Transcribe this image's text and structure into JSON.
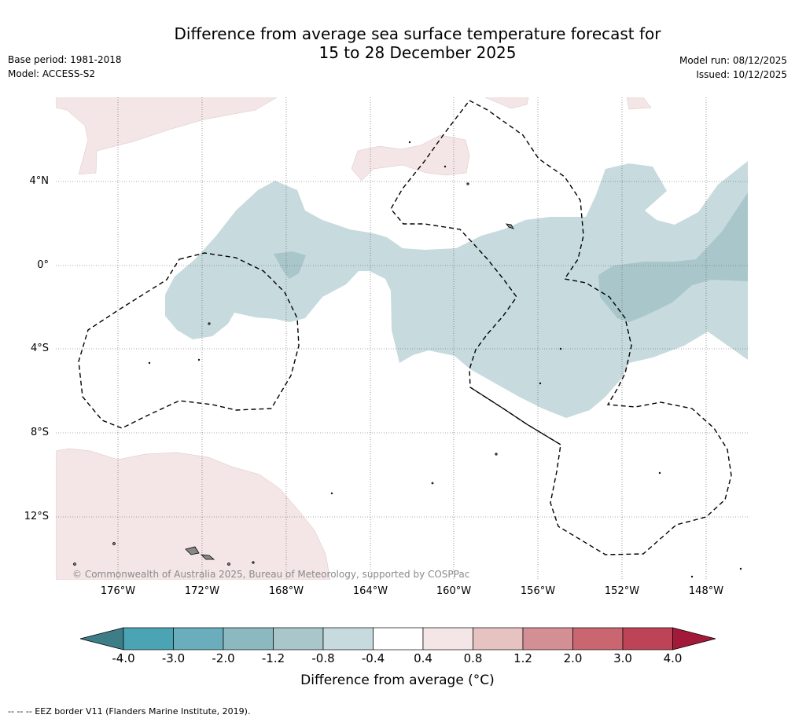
{
  "title": {
    "line1": "Difference from average sea surface temperature forecast for",
    "line2": "15 to 28 December 2025"
  },
  "info": {
    "base_period": "Base period: 1981-2018",
    "model": "Model: ACCESS-S2",
    "model_run": "Model run: 08/12/2025",
    "issued": "Issued: 10/12/2025"
  },
  "map": {
    "latitude_labels": [
      "4°N",
      "0°",
      "4°S",
      "8°S",
      "12°S"
    ],
    "longitude_labels": [
      "176°W",
      "172°W",
      "168°W",
      "164°W",
      "160°W",
      "156°W",
      "152°W",
      "148°W"
    ],
    "copyright": "© Commonwealth of Australia 2025, Bureau of Meteorology, supported by COSPPac"
  },
  "colorbar": {
    "ticks": [
      "-4.0",
      "-3.0",
      "-2.0",
      "-1.2",
      "-0.8",
      "-0.4",
      "0.4",
      "0.8",
      "1.2",
      "2.0",
      "3.0",
      "4.0"
    ],
    "label": "Difference from average (°C)",
    "colors": [
      "#3d7d88",
      "#4ba4b4",
      "#6aadbc",
      "#8cb8c0",
      "#a9c6cb",
      "#c7dade",
      "#ffffff",
      "#f4e6e6",
      "#e6c3c0",
      "#d48f95",
      "#c96670",
      "#bd4356",
      "#a31a39"
    ]
  },
  "footnote": "-- -- -- EEZ border V11 (Flanders Marine Institute, 2019)."
}
